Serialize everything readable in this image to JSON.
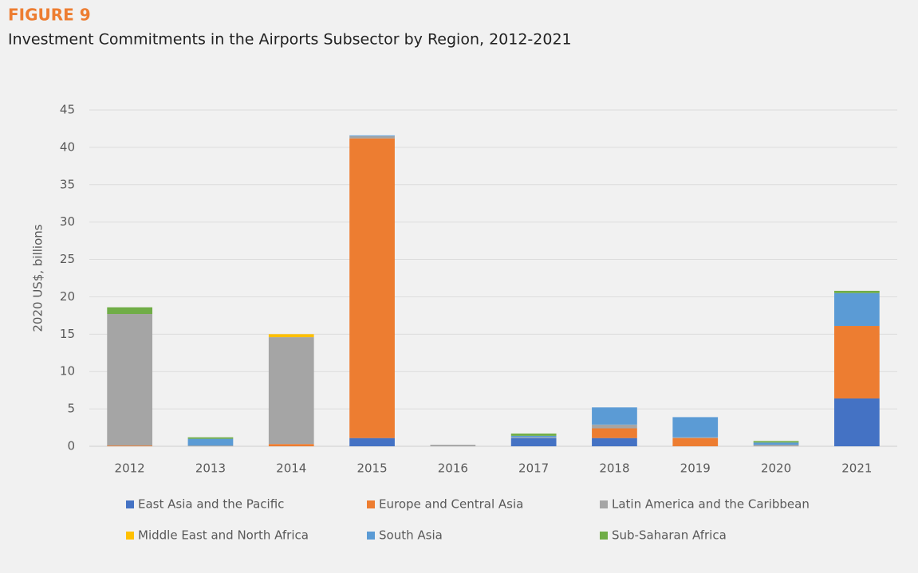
{
  "chart_data": {
    "type": "stacked-bar",
    "title": "FIGURE 9",
    "subtitle": "Investment Commitments in the Airports Subsector by Region, 2012-2021",
    "y_label": "2020 US$, billions",
    "categories": [
      "2012",
      "2013",
      "2014",
      "2015",
      "2016",
      "2017",
      "2018",
      "2019",
      "2020",
      "2021"
    ],
    "series": [
      {
        "name": "East Asia and the Pacific",
        "color": "#4472c4",
        "values": [
          0,
          0,
          0,
          1.1,
          0,
          1.1,
          1.1,
          0,
          0,
          6.4
        ]
      },
      {
        "name": "Europe and Central Asia",
        "color": "#ed7d31",
        "values": [
          0.1,
          0,
          0.3,
          40.1,
          0,
          0,
          1.3,
          1.1,
          0,
          9.7
        ]
      },
      {
        "name": "Latin America and the Caribbean",
        "color": "#a5a5a5",
        "values": [
          17.6,
          0.1,
          14.3,
          0.3,
          0.2,
          0.1,
          0.5,
          0.1,
          0.2,
          0
        ]
      },
      {
        "name": "Middle East and North Africa",
        "color": "#ffc000",
        "values": [
          0,
          0,
          0.4,
          0,
          0,
          0,
          0,
          0,
          0,
          0
        ]
      },
      {
        "name": "South Asia",
        "color": "#5b9bd5",
        "values": [
          0,
          0.9,
          0,
          0.1,
          0,
          0.2,
          2.3,
          2.7,
          0.3,
          4.4
        ]
      },
      {
        "name": "Sub-Saharan Africa",
        "color": "#70ad47",
        "values": [
          0.9,
          0.2,
          0,
          0,
          0,
          0.3,
          0,
          0,
          0.2,
          0.3
        ]
      }
    ],
    "ylim": [
      0,
      45
    ],
    "yticks": [
      0,
      5,
      10,
      15,
      20,
      25,
      30,
      35,
      40,
      45
    ],
    "grid": true
  }
}
